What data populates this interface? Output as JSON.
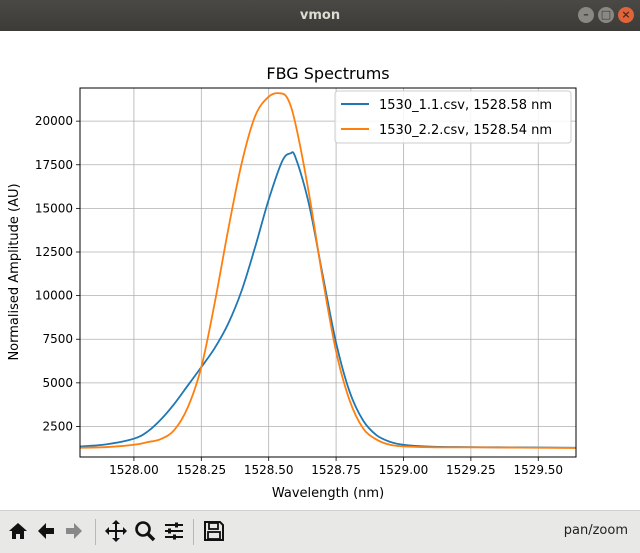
{
  "window": {
    "title": "vmon",
    "controls": [
      "minimize-icon",
      "maximize-icon",
      "close-icon"
    ]
  },
  "chart_data": {
    "type": "line",
    "title": "FBG Spectrums",
    "xlabel": "Wavelength (nm)",
    "ylabel": "Normalised Amplitude (AU)",
    "xlim": [
      1527.8,
      1529.64
    ],
    "ylim": [
      750,
      21900
    ],
    "xticks": [
      1528.0,
      1528.25,
      1528.5,
      1528.75,
      1529.0,
      1529.25,
      1529.5
    ],
    "xtick_labels": [
      "1528.00",
      "1528.25",
      "1528.50",
      "1528.75",
      "1529.00",
      "1529.25",
      "1529.50"
    ],
    "yticks": [
      2500,
      5000,
      7500,
      10000,
      12500,
      15000,
      17500,
      20000
    ],
    "ytick_labels": [
      "2500",
      "5000",
      "7500",
      "10000",
      "12500",
      "15000",
      "17500",
      "20000"
    ],
    "grid": true,
    "legend": "top-right",
    "series": [
      {
        "name": "1530_1.1.csv, 1528.58 nm",
        "color": "#1f77b4",
        "x": [
          1527.8,
          1527.9,
          1528.0,
          1528.05,
          1528.1,
          1528.15,
          1528.2,
          1528.25,
          1528.3,
          1528.35,
          1528.4,
          1528.45,
          1528.5,
          1528.55,
          1528.58,
          1528.6,
          1528.65,
          1528.7,
          1528.75,
          1528.8,
          1528.85,
          1528.9,
          1528.95,
          1529.0,
          1529.1,
          1529.2,
          1529.3,
          1529.4,
          1529.5,
          1529.64
        ],
        "y": [
          1350,
          1480,
          1800,
          2200,
          2900,
          3800,
          4850,
          5900,
          7000,
          8400,
          10300,
          12800,
          15500,
          17700,
          18150,
          17900,
          15200,
          11200,
          7300,
          4500,
          2850,
          2000,
          1620,
          1450,
          1340,
          1320,
          1310,
          1300,
          1290,
          1280
        ]
      },
      {
        "name": "1530_2.2.csv, 1528.54 nm",
        "color": "#ff7f0e",
        "x": [
          1527.8,
          1527.9,
          1528.0,
          1528.05,
          1528.1,
          1528.15,
          1528.2,
          1528.25,
          1528.3,
          1528.35,
          1528.4,
          1528.45,
          1528.5,
          1528.54,
          1528.57,
          1528.6,
          1528.65,
          1528.7,
          1528.75,
          1528.8,
          1528.85,
          1528.9,
          1528.95,
          1529.0,
          1529.1,
          1529.2,
          1529.3,
          1529.4,
          1529.5,
          1529.64
        ],
        "y": [
          1280,
          1320,
          1450,
          1600,
          1780,
          2300,
          3600,
          5900,
          9600,
          13800,
          17600,
          20300,
          21400,
          21600,
          21300,
          19800,
          15800,
          11000,
          6800,
          4000,
          2400,
          1750,
          1450,
          1360,
          1310,
          1300,
          1300,
          1290,
          1280,
          1270
        ]
      }
    ]
  },
  "toolbar": {
    "buttons": [
      "home-icon",
      "back-arrow-icon",
      "forward-arrow-icon",
      "pan-icon",
      "zoom-icon",
      "subplots-icon",
      "save-icon"
    ],
    "mode": "pan/zoom"
  }
}
